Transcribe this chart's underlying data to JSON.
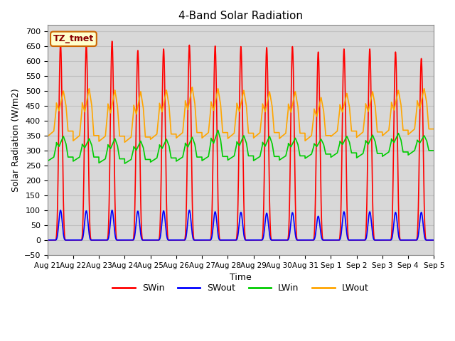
{
  "title": "4-Band Solar Radiation",
  "xlabel": "Time",
  "ylabel": "Solar Radiation (W/m2)",
  "ylim": [
    -50,
    720
  ],
  "yticks": [
    -50,
    0,
    50,
    100,
    150,
    200,
    250,
    300,
    350,
    400,
    450,
    500,
    550,
    600,
    650,
    700
  ],
  "num_days": 15,
  "label_text": "TZ_tmet",
  "label_bg": "#ffffcc",
  "label_border": "#cc0000",
  "colors": {
    "SWin": "#ff0000",
    "SWout": "#0000ff",
    "LWin": "#00cc00",
    "LWout": "#ffa500"
  },
  "background_color": "#d8d8d8",
  "peak_SWin": [
    658,
    653,
    666,
    635,
    640,
    653,
    650,
    648,
    645,
    648,
    630,
    640,
    640,
    630,
    608
  ],
  "peak_SWout": [
    100,
    98,
    100,
    97,
    98,
    100,
    95,
    93,
    90,
    92,
    80,
    95,
    95,
    93,
    93
  ],
  "LWin_base": [
    278,
    278,
    272,
    270,
    275,
    278,
    280,
    282,
    280,
    282,
    288,
    292,
    290,
    295,
    300
  ],
  "LWin_peak": [
    348,
    340,
    340,
    332,
    338,
    345,
    368,
    350,
    348,
    342,
    338,
    348,
    352,
    358,
    350
  ],
  "LWout_base": [
    365,
    350,
    348,
    345,
    355,
    360,
    360,
    358,
    360,
    358,
    350,
    365,
    362,
    368,
    372
  ],
  "LWout_peak": [
    500,
    508,
    503,
    498,
    503,
    513,
    508,
    502,
    498,
    498,
    478,
    492,
    498,
    502,
    508
  ],
  "line_width": 1.2
}
